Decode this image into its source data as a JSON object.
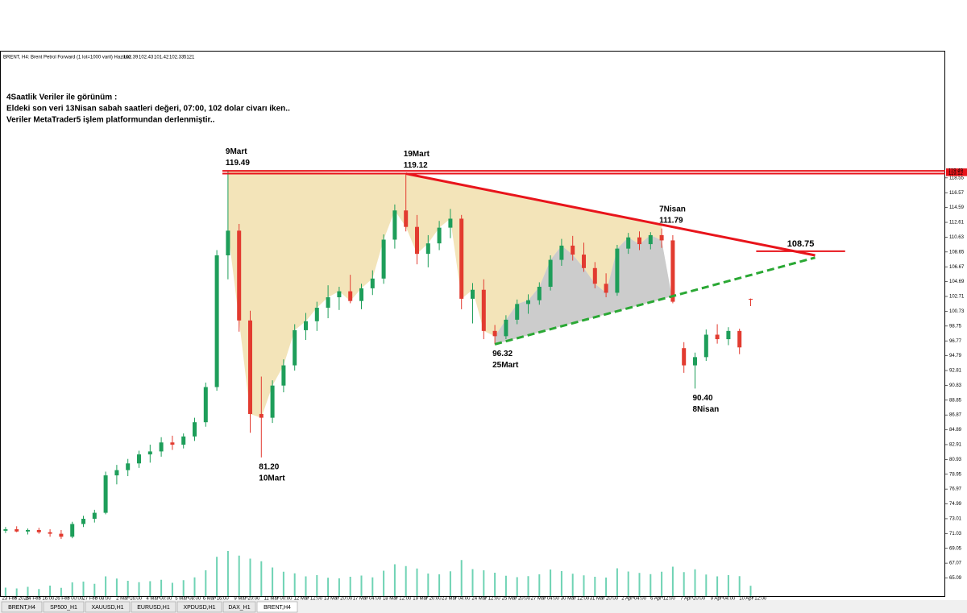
{
  "chart_data": {
    "type": "candlestick",
    "title": "BRENT, H4: Brent Petrol Forward (1 lot=1000 varil) Haziran",
    "notes": [
      "4Saatlik Veriler ile görünüm :",
      "Eldeki son veri 13Nisan sabah saatleri değeri, 07:00, 102 dolar civarı iken..",
      "Veriler MetaTrader5 işlem platformundan derlenmiştir.."
    ],
    "up_color": "#1e9e5a",
    "down_color": "#e23b30",
    "volume_color": "#6fd3b4",
    "open": [
      71.4,
      71.6,
      71.3,
      71.5,
      71.2,
      71.0,
      70.6,
      72.3,
      73.0,
      73.8,
      78.8,
      79.5,
      80.4,
      81.6,
      82.0,
      83.2,
      82.9,
      84.0,
      85.9,
      90.6,
      108.2,
      111.5,
      99.5,
      87.0,
      86.5,
      90.8,
      93.5,
      98.2,
      99.4,
      101.2,
      102.6,
      103.4,
      102.1,
      103.8,
      105.1,
      110.3,
      114.2,
      112.0,
      108.4,
      109.8,
      111.9,
      113.1,
      102.4,
      103.6,
      98.1,
      97.4,
      99.6,
      101.7,
      102.2,
      104.0,
      107.6,
      109.5,
      108.3,
      106.5,
      104.4,
      103.2,
      109.1,
      110.6,
      109.7,
      110.9,
      110.2,
      95.8,
      93.5,
      94.6,
      97.6,
      97.0,
      98.1,
      102.39
    ],
    "high": [
      71.9,
      72.0,
      71.7,
      71.8,
      71.6,
      71.5,
      72.6,
      73.4,
      74.2,
      79.3,
      80.2,
      81.0,
      82.1,
      82.9,
      83.9,
      84.1,
      84.4,
      86.5,
      91.2,
      108.9,
      119.49,
      112.4,
      100.8,
      92.0,
      91.5,
      94.3,
      99.0,
      100.5,
      102.0,
      104.2,
      104.0,
      105.6,
      104.4,
      106.2,
      111.0,
      115.0,
      119.12,
      113.6,
      110.9,
      112.8,
      114.4,
      113.6,
      104.5,
      105.0,
      98.9,
      100.2,
      102.3,
      103.0,
      104.6,
      108.2,
      110.4,
      110.8,
      109.9,
      107.3,
      105.8,
      109.6,
      111.2,
      111.4,
      111.3,
      111.79,
      110.9,
      96.6,
      95.2,
      98.3,
      99.0,
      98.6,
      98.4,
      102.43
    ],
    "low": [
      71.1,
      71.2,
      70.9,
      71.0,
      70.6,
      70.3,
      70.4,
      71.9,
      72.5,
      73.6,
      77.6,
      78.7,
      79.8,
      80.5,
      81.3,
      82.2,
      82.4,
      83.4,
      85.3,
      90.1,
      105.0,
      98.0,
      84.5,
      81.2,
      85.8,
      89.9,
      92.8,
      96.9,
      98.1,
      99.8,
      100.9,
      101.8,
      101.0,
      102.9,
      104.4,
      109.1,
      111.4,
      107.0,
      106.6,
      108.9,
      110.5,
      101.0,
      99.1,
      97.0,
      96.32,
      97.0,
      99.0,
      100.4,
      101.6,
      103.5,
      106.8,
      107.5,
      106.0,
      103.8,
      102.6,
      102.8,
      108.4,
      108.9,
      109.0,
      109.2,
      101.8,
      92.5,
      90.4,
      94.1,
      96.4,
      96.2,
      95.0,
      101.42
    ],
    "close": [
      71.6,
      71.3,
      71.5,
      71.2,
      71.0,
      70.6,
      72.3,
      73.0,
      73.8,
      78.8,
      79.5,
      80.4,
      81.6,
      82.0,
      83.2,
      82.9,
      84.0,
      85.9,
      90.6,
      108.2,
      111.5,
      99.5,
      87.0,
      86.5,
      90.8,
      93.5,
      98.2,
      99.4,
      101.2,
      102.6,
      103.4,
      102.1,
      103.8,
      105.1,
      110.3,
      114.2,
      112.0,
      108.4,
      109.8,
      111.9,
      113.1,
      102.4,
      103.6,
      98.1,
      97.4,
      99.6,
      101.7,
      102.2,
      104.0,
      107.6,
      109.5,
      108.3,
      106.5,
      104.4,
      103.2,
      109.1,
      110.6,
      109.7,
      110.9,
      110.2,
      102.0,
      93.5,
      94.6,
      97.6,
      97.0,
      98.1,
      95.9,
      102.33
    ],
    "volume": [
      4200,
      3800,
      4600,
      3500,
      5200,
      4100,
      6800,
      7200,
      6100,
      9800,
      8700,
      7600,
      6900,
      7400,
      8100,
      6600,
      7900,
      9300,
      12800,
      19500,
      22400,
      20100,
      18600,
      17300,
      14200,
      12100,
      11300,
      9800,
      10400,
      9100,
      8800,
      9600,
      10200,
      9300,
      12600,
      15800,
      14900,
      13700,
      11200,
      10800,
      12300,
      17900,
      13400,
      12800,
      11600,
      10100,
      9400,
      9900,
      10800,
      13200,
      12400,
      11100,
      10300,
      9600,
      9200,
      13800,
      12200,
      11500,
      10900,
      12100,
      14600,
      11900,
      13300,
      10700,
      9800,
      10400,
      9900,
      5121
    ],
    "xlim": [
      -0.5,
      84.5
    ],
    "ylim": [
      62.67,
      135.54
    ],
    "xticks": [
      {
        "value": 0.9,
        "label": "23 Feb 2026"
      },
      {
        "value": 3.1,
        "label": "24 Feb 16:00"
      },
      {
        "value": 5.7,
        "label": "26 Feb 00:00"
      },
      {
        "value": 8.2,
        "label": "27 Feb 08:00"
      },
      {
        "value": 11.1,
        "label": "2 Mar 16:00"
      },
      {
        "value": 13.8,
        "label": "4 Mar 00:00"
      },
      {
        "value": 16.4,
        "label": "5 Mar 08:00"
      },
      {
        "value": 18.9,
        "label": "6 Mar 16:00"
      },
      {
        "value": 21.7,
        "label": "9 Mar 20:00"
      },
      {
        "value": 24.5,
        "label": "11 Mar 00:00"
      },
      {
        "value": 27.2,
        "label": "12 Mar 12:00"
      },
      {
        "value": 29.9,
        "label": "13 Mar 20:00"
      },
      {
        "value": 32.5,
        "label": "17 Mar 04:00"
      },
      {
        "value": 35.2,
        "label": "18 Mar 12:00"
      },
      {
        "value": 37.9,
        "label": "19 Mar 20:00"
      },
      {
        "value": 40.5,
        "label": "23 Mar 04:00"
      },
      {
        "value": 43.2,
        "label": "24 Mar 12:00"
      },
      {
        "value": 45.9,
        "label": "25 Mar 20:00"
      },
      {
        "value": 48.5,
        "label": "27 Mar 04:00"
      },
      {
        "value": 51.2,
        "label": "30 Mar 12:00"
      },
      {
        "value": 53.8,
        "label": "31 Mar 20:00"
      },
      {
        "value": 56.5,
        "label": "2 Apr 04:00"
      },
      {
        "value": 59.1,
        "label": "6 Apr 12:00"
      },
      {
        "value": 61.8,
        "label": "7 Apr 20:00"
      },
      {
        "value": 64.5,
        "label": "9 Apr 04:00"
      },
      {
        "value": 67.2,
        "label": "10 Apr 12:00"
      }
    ],
    "yticks": [
      118.55,
      116.57,
      114.59,
      112.61,
      110.63,
      108.65,
      106.67,
      104.69,
      102.71,
      100.73,
      98.75,
      96.77,
      94.79,
      92.81,
      90.83,
      88.85,
      86.87,
      84.89,
      82.91,
      80.93,
      78.95,
      76.97,
      74.99,
      73.01,
      71.03,
      69.05,
      67.07,
      65.09
    ],
    "hlines": [
      {
        "y": 119.49,
        "from": 19.5,
        "color": "#e8141b"
      },
      {
        "y": 119.12,
        "from": 19.5,
        "color": "#e8141b"
      },
      {
        "y": 108.75,
        "from": 67.5,
        "to": 75.5,
        "color": "#e8141b",
        "label": "108.75"
      }
    ],
    "trendlines": [
      {
        "from": [
          36,
          119.12
        ],
        "to": [
          72.8,
          108.2
        ],
        "color": "#e8141b",
        "dashed": false
      },
      {
        "from": [
          44,
          96.32
        ],
        "to": [
          72.8,
          107.9
        ],
        "color": "#2aa834",
        "dashed": true
      }
    ],
    "annotations": [
      {
        "candle": 20,
        "at": "high",
        "date": "9Mart",
        "price": "119.49"
      },
      {
        "candle": 36,
        "at": "high",
        "date": "19Mart",
        "price": "119.12"
      },
      {
        "candle": 59,
        "at": "high",
        "date": "7Nisan",
        "price": "111.79"
      },
      {
        "candle": 44,
        "at": "low",
        "date": "25Mart",
        "price": "96.32"
      },
      {
        "candle": 23,
        "at": "low",
        "date": "10Mart",
        "price": "81.20"
      },
      {
        "candle": 62,
        "at": "low",
        "date": "8Nisan",
        "price": "90.40"
      }
    ]
  },
  "tabs": [
    "BRENT,H4",
    "SP500_H1",
    "XAUUSD,H1",
    "EURUSD,H1",
    "XPDUSD,H1",
    "DAX_H1",
    "BRENT,H4"
  ],
  "active_tab": 6
}
